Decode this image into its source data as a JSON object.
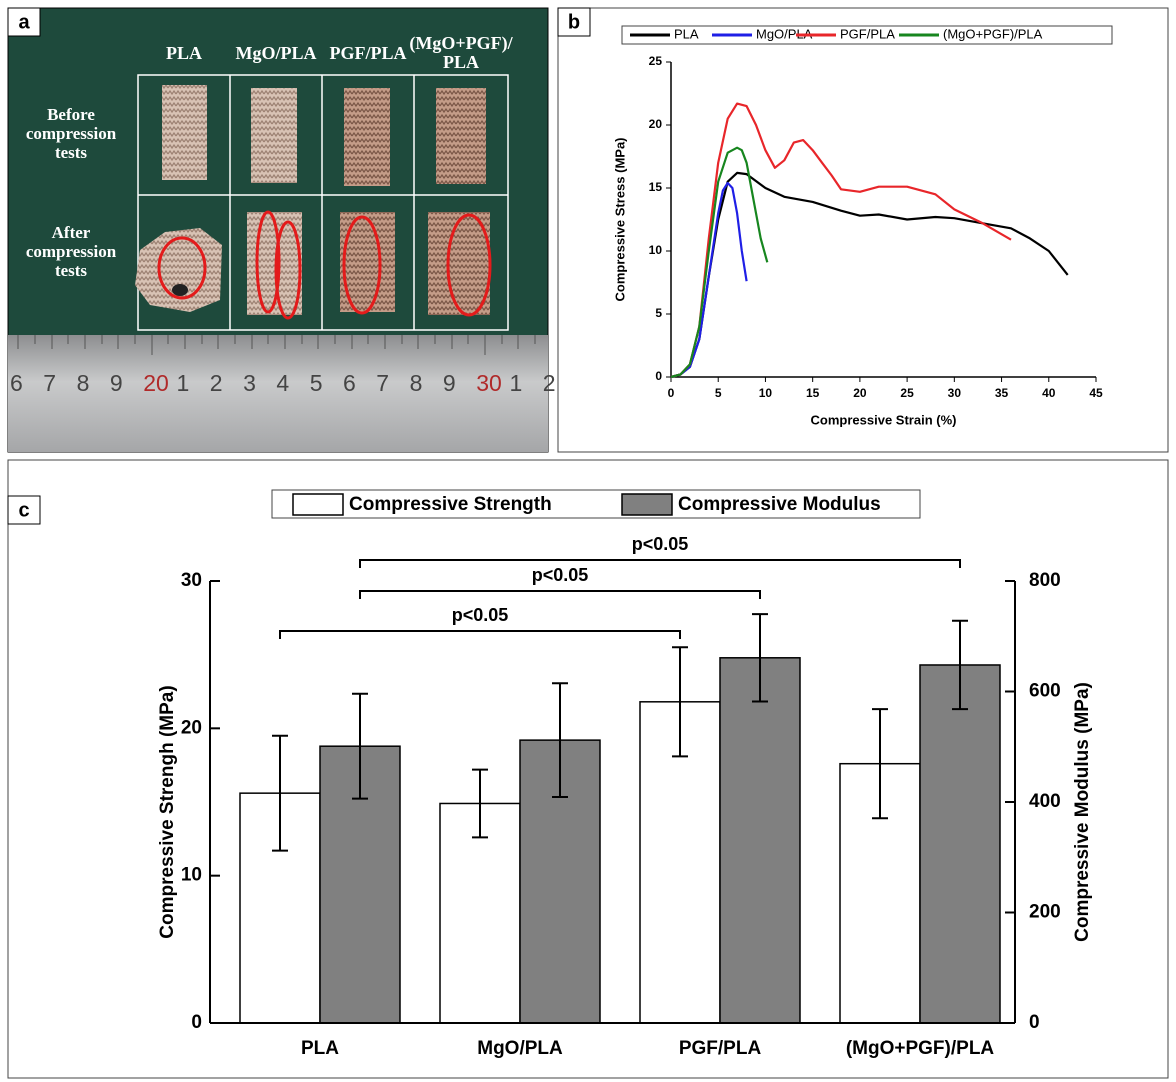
{
  "photo_panel": {
    "label": "a",
    "columns": [
      "PLA",
      "MgO/PLA",
      "PGF/PLA",
      "(MgO+PGF)/\nPLA"
    ],
    "rows": [
      "Before\ncompression\ntests",
      "After\ncompression\ntests"
    ],
    "ruler": [
      "6",
      "7",
      "8",
      "9",
      "20",
      "1",
      "2",
      "3",
      "4",
      "5",
      "6",
      "7",
      "8",
      "9",
      "30",
      "1",
      "2"
    ]
  },
  "chart_data": [
    {
      "type": "line",
      "panel_label": "b",
      "x_label": "Compressive Strain (%)",
      "y_label": "Compressive Stress (MPa)",
      "xlim": [
        0,
        45
      ],
      "xticks": [
        0,
        5,
        10,
        15,
        20,
        25,
        30,
        35,
        40,
        45
      ],
      "ylim": [
        0,
        25
      ],
      "yticks": [
        0,
        5,
        10,
        15,
        20,
        25
      ],
      "series": [
        {
          "name": "PLA",
          "color": "#000000",
          "x": [
            0,
            1,
            2,
            3,
            4,
            5,
            6,
            7,
            8,
            10,
            12,
            15,
            18,
            20,
            22,
            25,
            28,
            30,
            33,
            36,
            38,
            40,
            42
          ],
          "values": [
            0,
            0.2,
            0.8,
            3,
            8,
            12.5,
            15.5,
            16.2,
            16.1,
            15,
            14.3,
            13.9,
            13.2,
            12.8,
            12.9,
            12.5,
            12.7,
            12.6,
            12.2,
            11.8,
            11,
            10,
            8.1
          ]
        },
        {
          "name": "MgO/PLA",
          "color": "#1f1fe6",
          "x": [
            0,
            1,
            2,
            3,
            4,
            5,
            5.5,
            6,
            6.5,
            7,
            7.5,
            8
          ],
          "values": [
            0,
            0.2,
            0.8,
            3,
            8,
            13,
            14.8,
            15.4,
            15,
            13,
            10,
            7.6
          ]
        },
        {
          "name": "PGF/PLA",
          "color": "#e8262a",
          "x": [
            0,
            1,
            2,
            3,
            4,
            5,
            6,
            7,
            8,
            9,
            10,
            11,
            12,
            13,
            14,
            15,
            16,
            17,
            18,
            20,
            22,
            25,
            28,
            30,
            33,
            36
          ],
          "values": [
            0,
            0.2,
            1,
            4,
            11,
            17,
            20.5,
            21.7,
            21.5,
            20,
            18,
            16.6,
            17.2,
            18.6,
            18.8,
            18,
            17,
            16,
            14.9,
            14.7,
            15.1,
            15.1,
            14.5,
            13.3,
            12.2,
            10.9
          ]
        },
        {
          "name": "(MgO+PGF)/PLA",
          "color": "#17861f",
          "x": [
            0,
            1,
            2,
            3,
            4,
            5,
            6,
            7,
            7.5,
            8,
            8.5,
            9,
            9.5,
            10.2
          ],
          "values": [
            0,
            0.2,
            1,
            4,
            10,
            15.5,
            17.8,
            18.2,
            18,
            17,
            15,
            13,
            11,
            9.1
          ]
        }
      ]
    },
    {
      "type": "bar",
      "panel_label": "c",
      "categories": [
        "PLA",
        "MgO/PLA",
        "PGF/PLA",
        "(MgO+PGF)/PLA"
      ],
      "y_label": "Compressive Strengh (MPa)",
      "y2_label": "Compressive Modulus (MPa)",
      "ylim": [
        0,
        30
      ],
      "yticks": [
        0,
        10,
        20,
        30
      ],
      "y2lim": [
        0,
        800
      ],
      "y2ticks": [
        0,
        200,
        400,
        600,
        800
      ],
      "series": [
        {
          "name": "Compressive Strength",
          "color": "#ffffff",
          "values": [
            15.6,
            14.9,
            21.8,
            17.6
          ],
          "errors": [
            3.9,
            2.3,
            3.7,
            3.7
          ]
        },
        {
          "name": "Compressive Modulus",
          "color": "#808080",
          "axis": "y2",
          "values": [
            501,
            512,
            661,
            648
          ],
          "errors": [
            95,
            103,
            79,
            80
          ]
        }
      ],
      "annotations": [
        "p<0.05",
        "p<0.05",
        "p<0.05"
      ]
    }
  ]
}
